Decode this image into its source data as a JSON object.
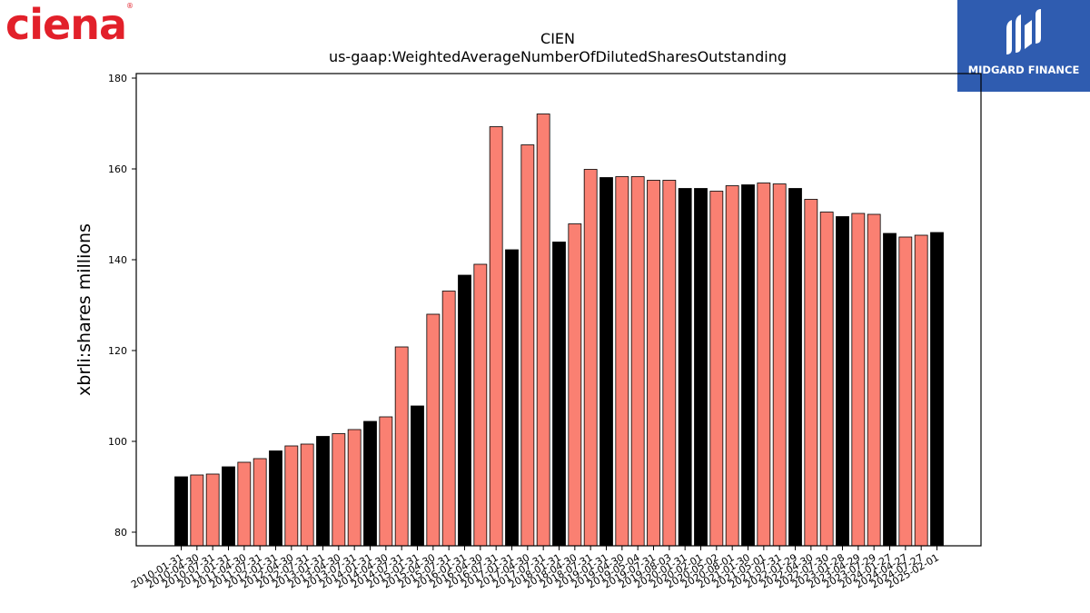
{
  "branding": {
    "company_logo_text": "ciena",
    "sponsor_name": "MIDGARD FINANCE"
  },
  "colors": {
    "bar_black": "#000000",
    "bar_salmon": "#fa8072",
    "axis": "#000000"
  },
  "chart_data": {
    "type": "bar",
    "title": "CIEN",
    "subtitle": "us-gaap:WeightedAverageNumberOfDilutedSharesOutstanding",
    "xlabel": "",
    "ylabel": "xbrli:shares millions",
    "ylim": [
      77,
      181
    ],
    "yticks": [
      80,
      100,
      120,
      140,
      160,
      180
    ],
    "grid": false,
    "legend": "none",
    "categories": [
      "2010-01-31",
      "2010-04-30",
      "2010-07-31",
      "2011-01-31",
      "2011-04-30",
      "2011-07-31",
      "2012-01-31",
      "2012-04-30",
      "2012-07-31",
      "2013-01-31",
      "2013-04-30",
      "2013-07-31",
      "2014-01-31",
      "2014-04-30",
      "2014-07-31",
      "2015-01-31",
      "2015-04-30",
      "2015-07-31",
      "2016-01-31",
      "2016-04-30",
      "2016-07-31",
      "2017-01-31",
      "2017-04-30",
      "2017-07-31",
      "2018-01-31",
      "2018-04-30",
      "2018-07-31",
      "2019-01-31",
      "2019-04-30",
      "2019-05-04",
      "2019-07-31",
      "2019-08-03",
      "2020-01-31",
      "2020-02-01",
      "2020-05-02",
      "2020-08-01",
      "2021-01-30",
      "2021-05-01",
      "2021-07-31",
      "2022-01-29",
      "2022-04-30",
      "2022-07-30",
      "2023-01-28",
      "2023-04-29",
      "2023-07-29",
      "2024-01-27",
      "2024-04-27",
      "2024-07-27",
      "2025-02-01"
    ],
    "values": [
      92.2,
      92.6,
      92.8,
      94.4,
      95.4,
      96.2,
      97.9,
      99.0,
      99.4,
      101.1,
      101.7,
      102.6,
      104.4,
      105.4,
      120.8,
      107.8,
      128.0,
      133.1,
      136.6,
      139.0,
      169.3,
      142.2,
      165.3,
      172.1,
      143.9,
      147.9,
      159.9,
      158.1,
      158.3,
      158.3,
      157.5,
      157.5,
      155.7,
      155.7,
      155.1,
      156.3,
      156.5,
      156.9,
      156.7,
      155.7,
      153.3,
      150.5,
      149.5,
      150.2,
      150.0,
      145.8,
      145.0,
      145.4,
      146.0
    ],
    "bar_colors": [
      "#000000",
      "#fa8072",
      "#fa8072",
      "#000000",
      "#fa8072",
      "#fa8072",
      "#000000",
      "#fa8072",
      "#fa8072",
      "#000000",
      "#fa8072",
      "#fa8072",
      "#000000",
      "#fa8072",
      "#fa8072",
      "#000000",
      "#fa8072",
      "#fa8072",
      "#000000",
      "#fa8072",
      "#fa8072",
      "#000000",
      "#fa8072",
      "#fa8072",
      "#000000",
      "#fa8072",
      "#fa8072",
      "#000000",
      "#fa8072",
      "#fa8072",
      "#fa8072",
      "#fa8072",
      "#000000",
      "#000000",
      "#fa8072",
      "#fa8072",
      "#000000",
      "#fa8072",
      "#fa8072",
      "#000000",
      "#fa8072",
      "#fa8072",
      "#000000",
      "#fa8072",
      "#fa8072",
      "#000000",
      "#fa8072",
      "#fa8072",
      "#000000"
    ]
  }
}
